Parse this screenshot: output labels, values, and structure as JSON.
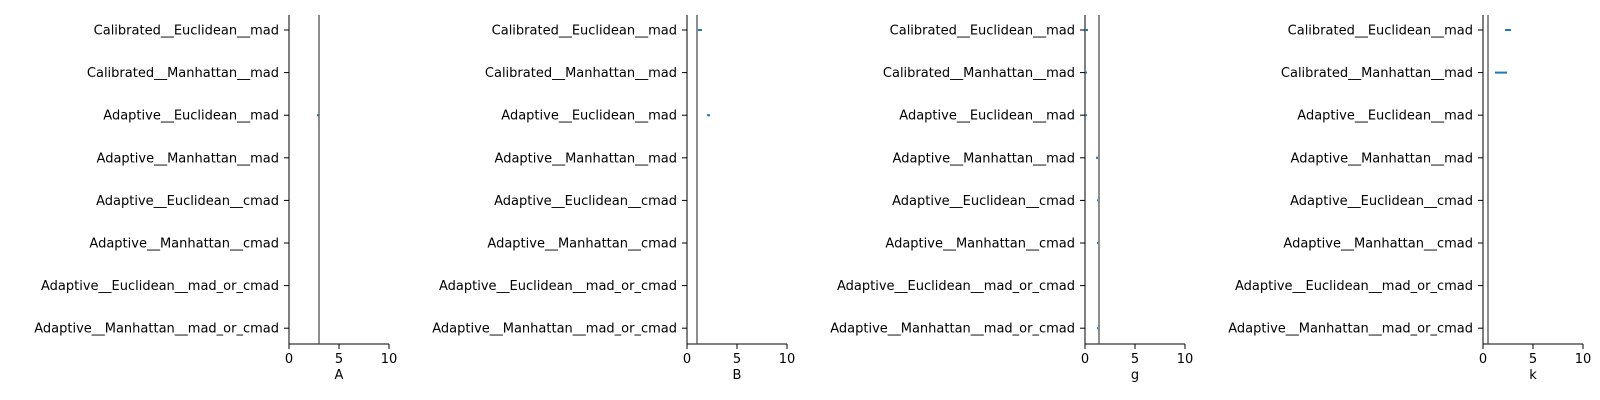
{
  "colors": {
    "axis": "#000000",
    "ref_line": "#444444",
    "series": "#1f77b4"
  },
  "chart_data": [
    {
      "type": "interval",
      "xlabel": "A",
      "xlim": [
        0,
        10
      ],
      "xticks": [
        "0",
        "5",
        "10"
      ],
      "categories": [
        "Calibrated__Euclidean__mad",
        "Calibrated__Manhattan__mad",
        "Adaptive__Euclidean__mad",
        "Adaptive__Manhattan__mad",
        "Adaptive__Euclidean__cmad",
        "Adaptive__Manhattan__cmad",
        "Adaptive__Euclidean__mad_or_cmad",
        "Adaptive__Manhattan__mad_or_cmad"
      ],
      "reference": 3.0,
      "intervals": [
        null,
        null,
        [
          2.8,
          2.95
        ],
        null,
        null,
        null,
        null,
        null
      ]
    },
    {
      "type": "interval",
      "xlabel": "B",
      "xlim": [
        0,
        10
      ],
      "xticks": [
        "0",
        "5",
        "10"
      ],
      "categories": [
        "Calibrated__Euclidean__mad",
        "Calibrated__Manhattan__mad",
        "Adaptive__Euclidean__mad",
        "Adaptive__Manhattan__mad",
        "Adaptive__Euclidean__cmad",
        "Adaptive__Manhattan__cmad",
        "Adaptive__Euclidean__mad_or_cmad",
        "Adaptive__Manhattan__mad_or_cmad"
      ],
      "reference": 1.0,
      "intervals": [
        [
          1.1,
          1.5
        ],
        null,
        [
          2.0,
          2.3
        ],
        null,
        null,
        null,
        null,
        null
      ]
    },
    {
      "type": "interval",
      "xlabel": "g",
      "xlim": [
        0,
        10
      ],
      "xticks": [
        "0",
        "5",
        "10"
      ],
      "categories": [
        "Calibrated__Euclidean__mad",
        "Calibrated__Manhattan__mad",
        "Adaptive__Euclidean__mad",
        "Adaptive__Manhattan__mad",
        "Adaptive__Euclidean__cmad",
        "Adaptive__Manhattan__cmad",
        "Adaptive__Euclidean__mad_or_cmad",
        "Adaptive__Manhattan__mad_or_cmad"
      ],
      "reference": 1.4,
      "intervals": [
        [
          0.0,
          0.3
        ],
        [
          0.0,
          0.2
        ],
        [
          0.0,
          0.2
        ],
        [
          1.1,
          1.3
        ],
        [
          1.2,
          1.3
        ],
        [
          1.2,
          1.3
        ],
        null,
        [
          1.2,
          1.3
        ]
      ]
    },
    {
      "type": "interval",
      "xlabel": "k",
      "xlim": [
        0,
        10
      ],
      "xticks": [
        "0",
        "5",
        "10"
      ],
      "categories": [
        "Calibrated__Euclidean__mad",
        "Calibrated__Manhattan__mad",
        "Adaptive__Euclidean__mad",
        "Adaptive__Manhattan__mad",
        "Adaptive__Euclidean__cmad",
        "Adaptive__Manhattan__cmad",
        "Adaptive__Euclidean__mad_or_cmad",
        "Adaptive__Manhattan__mad_or_cmad"
      ],
      "reference": 0.5,
      "intervals": [
        [
          2.2,
          2.8
        ],
        [
          1.2,
          2.4
        ],
        null,
        null,
        null,
        null,
        null,
        null
      ]
    }
  ]
}
